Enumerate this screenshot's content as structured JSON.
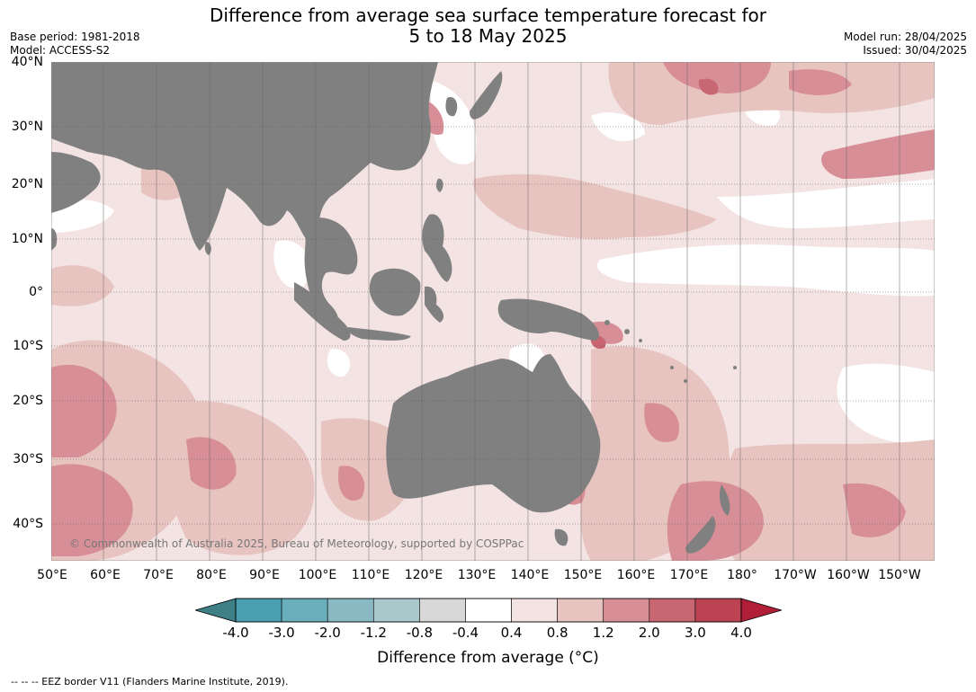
{
  "title_line1": "Difference from average sea surface temperature forecast for",
  "title_line2": "5 to 18 May 2025",
  "base_period": "Base period: 1981-2018",
  "model": "Model: ACCESS-S2",
  "model_run": "Model run: 28/04/2025",
  "issued": "Issued: 30/04/2025",
  "copyright": "© Commonwealth of Australia 2025, Bureau of Meteorology, supported by COSPPac",
  "lat_labels": [
    "40°N",
    "30°N",
    "20°N",
    "10°N",
    "0°",
    "10°S",
    "20°S",
    "30°S",
    "40°S"
  ],
  "lon_labels": [
    "50°E",
    "60°E",
    "70°E",
    "80°E",
    "90°E",
    "100°E",
    "110°E",
    "120°E",
    "130°E",
    "140°E",
    "150°E",
    "160°E",
    "170°E",
    "180°",
    "170°W",
    "160°W",
    "150°W"
  ],
  "colorbar": {
    "title": "Difference from average (°C)",
    "ticks": [
      "-4.0",
      "-3.0",
      "-2.0",
      "-1.2",
      "-0.8",
      "-0.4",
      "0.4",
      "0.8",
      "1.2",
      "2.0",
      "3.0",
      "4.0"
    ],
    "colors": [
      "#4aa0b0",
      "#6aaebb",
      "#8ab8c3",
      "#a8c8cc",
      "#d8d8d8",
      "#ffffff",
      "#f3e4e3",
      "#e8c4c1",
      "#d88e96",
      "#c86672",
      "#bc4452"
    ],
    "extend_low": "#3f7f86",
    "extend_high": "#b01e38"
  },
  "colors": {
    "land": "#808080",
    "background_anomaly": "#f3e4e3"
  },
  "footer": "--  --  -- EEZ border V11 (Flanders Marine Institute, 2019)."
}
